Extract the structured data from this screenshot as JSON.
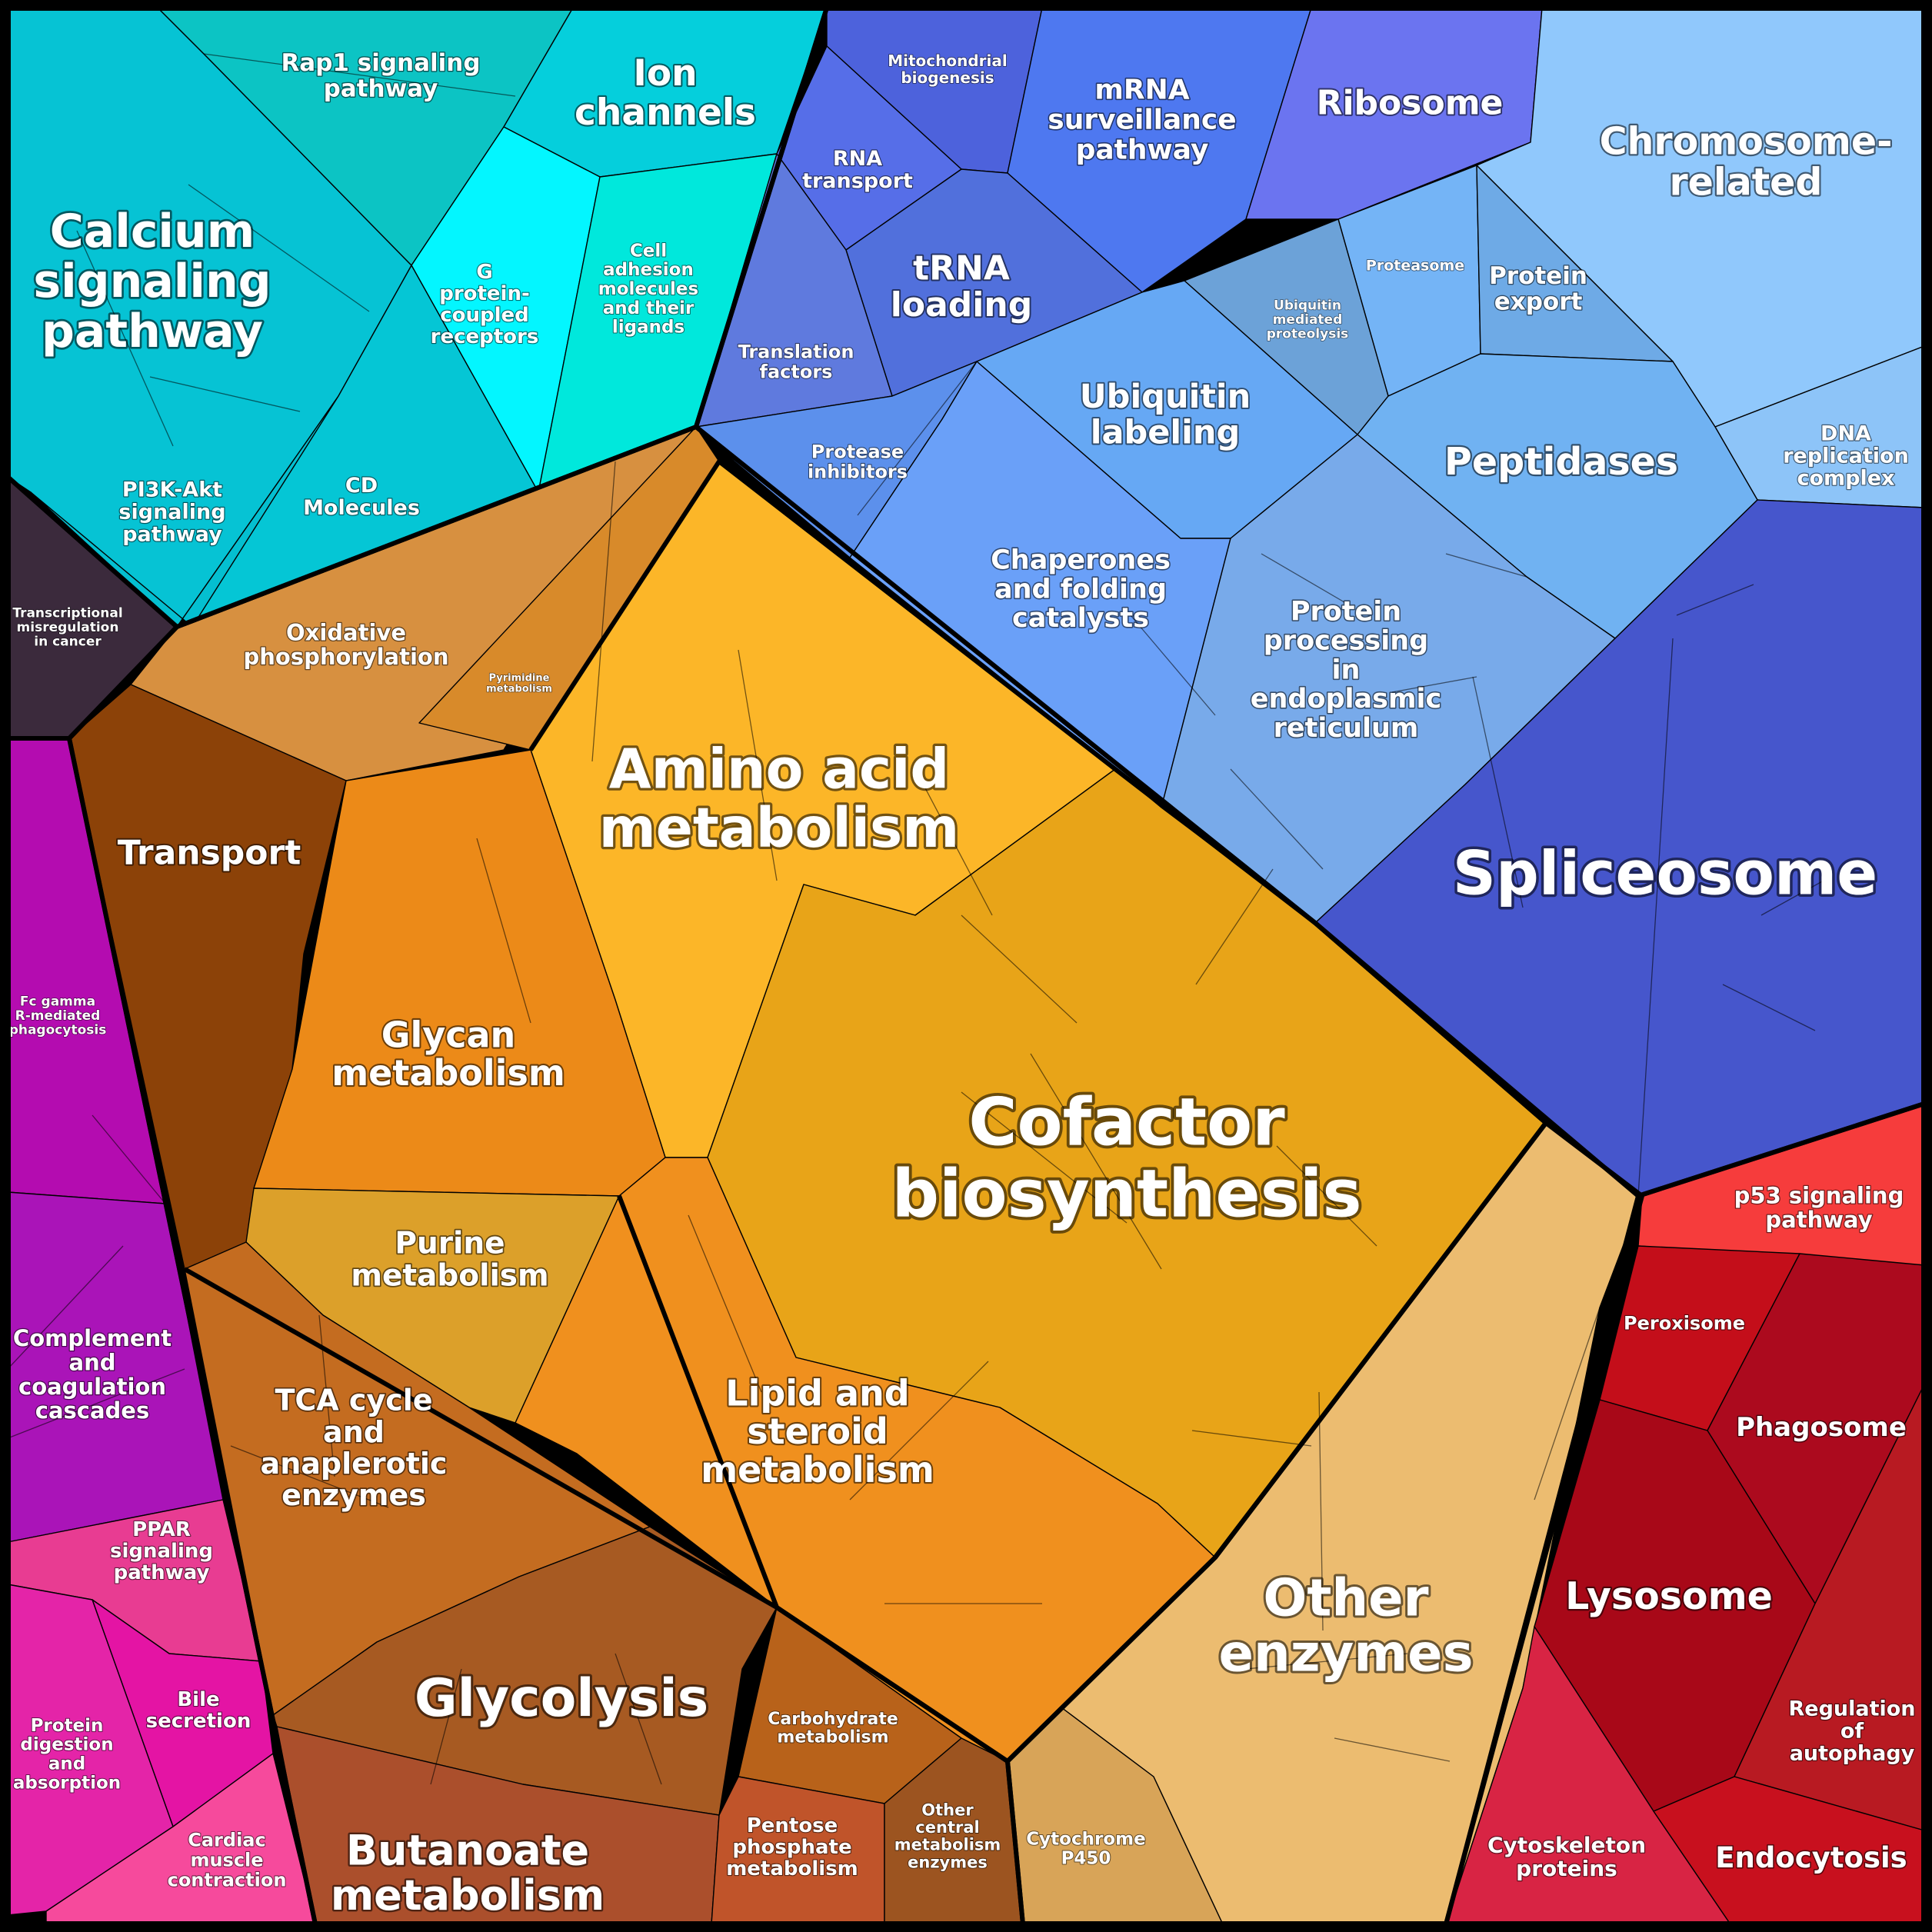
{
  "diagram": {
    "type": "voronoi-treemap",
    "groups": [
      {
        "id": "calcium-signaling-pathway",
        "label": "Calcium signaling pathway",
        "color": "#06c3d4"
      },
      {
        "id": "rap1-signaling-pathway",
        "label": "Rap1 signaling pathway",
        "color": "#0cc4c4"
      },
      {
        "id": "ion-channels",
        "label": "Ion channels",
        "color": "#05cfdc"
      },
      {
        "id": "g-protein-coupled-receptors",
        "label": "G protein-coupled receptors",
        "color": "#03f6ff"
      },
      {
        "id": "cell-adhesion-molecules",
        "label": "Cell adhesion molecules and their ligands",
        "color": "#00e8dc"
      },
      {
        "id": "pi3k-akt-signaling-pathway",
        "label": "PI3K-Akt signaling pathway",
        "color": "#04bfd0"
      },
      {
        "id": "cd-molecules",
        "label": "CD Molecules",
        "color": "#05c6d5"
      },
      {
        "id": "transcriptional-misregulation",
        "label": "Transcriptional misregulation in cancer",
        "color": "#3b2a3c"
      },
      {
        "id": "mitochondrial-biogenesis",
        "label": "Mitochondrial biogenesis",
        "color": "#4d62dc"
      },
      {
        "id": "rna-transport",
        "label": "RNA transport",
        "color": "#566ee8"
      },
      {
        "id": "mrna-surveillance-pathway",
        "label": "mRNA surveillance pathway",
        "color": "#4e78f0"
      },
      {
        "id": "ribosome",
        "label": "Ribosome",
        "color": "#6b74f0"
      },
      {
        "id": "trna-loading",
        "label": "tRNA loading",
        "color": "#5170dc"
      },
      {
        "id": "translation-factors",
        "label": "Translation factors",
        "color": "#5f7ade"
      },
      {
        "id": "chromosome-related",
        "label": "Chromosome-related",
        "color": "#90c8fc"
      },
      {
        "id": "dna-replication-complex",
        "label": "DNA replication complex",
        "color": "#8dc4f8"
      },
      {
        "id": "proteasome",
        "label": "Proteasome",
        "color": "#74b4f6"
      },
      {
        "id": "protein-export",
        "label": "Protein export",
        "color": "#6eaae6"
      },
      {
        "id": "ubiquitin-mediated-proteolysis",
        "label": "Ubiquitin mediated proteolysis",
        "color": "#6ca2d8"
      },
      {
        "id": "ubiquitin-labeling",
        "label": "Ubiquitin labeling",
        "color": "#66a8f4"
      },
      {
        "id": "peptidases",
        "label": "Peptidases",
        "color": "#70b2f2"
      },
      {
        "id": "protease-inhibitors",
        "label": "Protease inhibitors",
        "color": "#5c90ec"
      },
      {
        "id": "chaperones-and-folding-catalysts",
        "label": "Chaperones and folding catalysts",
        "color": "#6aa0f8"
      },
      {
        "id": "protein-processing-er",
        "label": "Protein processing in endoplasmic reticulum",
        "color": "#78aaea"
      },
      {
        "id": "spliceosome",
        "label": "Spliceosome",
        "color": "#4656cc"
      },
      {
        "id": "oxidative-phosphorylation",
        "label": "Oxidative phosphorylation",
        "color": "#d79040"
      },
      {
        "id": "pyrimidine-metabolism",
        "label": "Pyrimidine metabolism",
        "color": "#d88a2a"
      },
      {
        "id": "transport",
        "label": "Transport",
        "color": "#8c4208"
      },
      {
        "id": "amino-acid-metabolism",
        "label": "Amino acid metabolism",
        "color": "#fcb628"
      },
      {
        "id": "glycan-metabolism",
        "label": "Glycan metabolism",
        "color": "#ec8a18"
      },
      {
        "id": "cofactor-biosynthesis",
        "label": "Cofactor biosynthesis",
        "color": "#e8a418"
      },
      {
        "id": "purine-metabolism",
        "label": "Purine metabolism",
        "color": "#dca02a"
      },
      {
        "id": "lipid-and-steroid-metabolism",
        "label": "Lipid and steroid metabolism",
        "color": "#f0901e"
      },
      {
        "id": "tca-cycle",
        "label": "TCA cycle and anaplerotic enzymes",
        "color": "#c46c20"
      },
      {
        "id": "glycolysis",
        "label": "Glycolysis",
        "color": "#a75a22"
      },
      {
        "id": "butanoate-metabolism",
        "label": "Butanoate metabolism",
        "color": "#ab4f2c"
      },
      {
        "id": "carbohydrate-metabolism",
        "label": "Carbohydrate metabolism",
        "color": "#b8621a"
      },
      {
        "id": "pentose-phosphate-metabolism",
        "label": "Pentose phosphate metabolism",
        "color": "#c0542a"
      },
      {
        "id": "other-central-metabolism-enzymes",
        "label": "Other central metabolism enzymes",
        "color": "#9c5420"
      },
      {
        "id": "cytochrome-p450",
        "label": "Cytochrome P450",
        "color": "#d8a458"
      },
      {
        "id": "other-enzymes",
        "label": "Other enzymes",
        "color": "#ecbc70"
      },
      {
        "id": "fc-gamma-phagocytosis",
        "label": "Fc gamma R-mediated phagocytosis",
        "color": "#b40cb0"
      },
      {
        "id": "complement-and-coagulation",
        "label": "Complement and coagulation cascades",
        "color": "#aa14b8"
      },
      {
        "id": "ppar-signaling-pathway",
        "label": "PPAR signaling pathway",
        "color": "#e83c92"
      },
      {
        "id": "bile-secretion",
        "label": "Bile secretion",
        "color": "#e414a4"
      },
      {
        "id": "protein-digestion-and-absorption",
        "label": "Protein digestion and absorption",
        "color": "#e424a8"
      },
      {
        "id": "cardiac-muscle-contraction",
        "label": "Cardiac muscle contraction",
        "color": "#f64a9c"
      },
      {
        "id": "p53-signaling-pathway",
        "label": "p53 signaling pathway",
        "color": "#f63c3c"
      },
      {
        "id": "peroxisome",
        "label": "Peroxisome",
        "color": "#c40e1a"
      },
      {
        "id": "phagosome",
        "label": "Phagosome",
        "color": "#ac0a1e"
      },
      {
        "id": "lysosome",
        "label": "Lysosome",
        "color": "#a80818"
      },
      {
        "id": "regulation-of-autophagy",
        "label": "Regulation of autophagy",
        "color": "#b81a22"
      },
      {
        "id": "cytoskeleton-proteins",
        "label": "Cytoskeleton proteins",
        "color": "#d82444"
      },
      {
        "id": "endocytosis",
        "label": "Endocytosis",
        "color": "#c8101e"
      }
    ],
    "labels": [
      {
        "group": "calcium-signaling-pathway",
        "lines": [
          "Calcium",
          "signaling",
          "pathway"
        ]
      },
      {
        "group": "rap1-signaling-pathway",
        "lines": [
          "Rap1 signaling",
          "pathway"
        ]
      },
      {
        "group": "ion-channels",
        "lines": [
          "Ion",
          "channels"
        ]
      },
      {
        "group": "g-protein-coupled-receptors",
        "lines": [
          "G",
          "protein-",
          "coupled",
          "receptors"
        ]
      },
      {
        "group": "cell-adhesion-molecules",
        "lines": [
          "Cell",
          "adhesion",
          "molecules",
          "and their",
          "ligands"
        ]
      },
      {
        "group": "pi3k-akt-signaling-pathway",
        "lines": [
          "PI3K-Akt",
          "signaling",
          "pathway"
        ]
      },
      {
        "group": "cd-molecules",
        "lines": [
          "CD",
          "Molecules"
        ]
      },
      {
        "group": "transcriptional-misregulation",
        "lines": [
          "Transcriptional",
          "misregulation",
          "in cancer"
        ]
      },
      {
        "group": "mitochondrial-biogenesis",
        "lines": [
          "Mitochondrial",
          "biogenesis"
        ]
      },
      {
        "group": "rna-transport",
        "lines": [
          "RNA",
          "transport"
        ]
      },
      {
        "group": "mrna-surveillance-pathway",
        "lines": [
          "mRNA",
          "surveillance",
          "pathway"
        ]
      },
      {
        "group": "ribosome",
        "lines": [
          "Ribosome"
        ]
      },
      {
        "group": "trna-loading",
        "lines": [
          "tRNA",
          "loading"
        ]
      },
      {
        "group": "translation-factors",
        "lines": [
          "Translation",
          "factors"
        ]
      },
      {
        "group": "chromosome-related",
        "lines": [
          "Chromosome-",
          "related"
        ]
      },
      {
        "group": "dna-replication-complex",
        "lines": [
          "DNA",
          "replication",
          "complex"
        ]
      },
      {
        "group": "proteasome",
        "lines": [
          "Proteasome"
        ]
      },
      {
        "group": "protein-export",
        "lines": [
          "Protein",
          "export"
        ]
      },
      {
        "group": "ubiquitin-mediated-proteolysis",
        "lines": [
          "Ubiquitin",
          "mediated",
          "proteolysis"
        ]
      },
      {
        "group": "ubiquitin-labeling",
        "lines": [
          "Ubiquitin",
          "labeling"
        ]
      },
      {
        "group": "peptidases",
        "lines": [
          "Peptidases"
        ]
      },
      {
        "group": "protease-inhibitors",
        "lines": [
          "Protease",
          "inhibitors"
        ]
      },
      {
        "group": "chaperones-and-folding-catalysts",
        "lines": [
          "Chaperones",
          "and folding",
          "catalysts"
        ]
      },
      {
        "group": "protein-processing-er",
        "lines": [
          "Protein",
          "processing",
          "in",
          "endoplasmic",
          "reticulum"
        ]
      },
      {
        "group": "spliceosome",
        "lines": [
          "Spliceosome"
        ]
      },
      {
        "group": "oxidative-phosphorylation",
        "lines": [
          "Oxidative",
          "phosphorylation"
        ]
      },
      {
        "group": "pyrimidine-metabolism",
        "lines": [
          "Pyrimidine",
          "metabolism"
        ]
      },
      {
        "group": "transport",
        "lines": [
          "Transport"
        ]
      },
      {
        "group": "amino-acid-metabolism",
        "lines": [
          "Amino acid",
          "metabolism"
        ]
      },
      {
        "group": "glycan-metabolism",
        "lines": [
          "Glycan",
          "metabolism"
        ]
      },
      {
        "group": "cofactor-biosynthesis",
        "lines": [
          "Cofactor",
          "biosynthesis"
        ]
      },
      {
        "group": "purine-metabolism",
        "lines": [
          "Purine",
          "metabolism"
        ]
      },
      {
        "group": "lipid-and-steroid-metabolism",
        "lines": [
          "Lipid and",
          "steroid",
          "metabolism"
        ]
      },
      {
        "group": "tca-cycle",
        "lines": [
          "TCA cycle",
          "and",
          "anaplerotic",
          "enzymes"
        ]
      },
      {
        "group": "glycolysis",
        "lines": [
          "Glycolysis"
        ]
      },
      {
        "group": "butanoate-metabolism",
        "lines": [
          "Butanoate",
          "metabolism"
        ]
      },
      {
        "group": "carbohydrate-metabolism",
        "lines": [
          "Carbohydrate",
          "metabolism"
        ]
      },
      {
        "group": "pentose-phosphate-metabolism",
        "lines": [
          "Pentose",
          "phosphate",
          "metabolism"
        ]
      },
      {
        "group": "other-central-metabolism-enzymes",
        "lines": [
          "Other",
          "central",
          "metabolism",
          "enzymes"
        ]
      },
      {
        "group": "cytochrome-p450",
        "lines": [
          "Cytochrome",
          "P450"
        ]
      },
      {
        "group": "other-enzymes",
        "lines": [
          "Other",
          "enzymes"
        ]
      },
      {
        "group": "fc-gamma-phagocytosis",
        "lines": [
          "Fc gamma",
          "R-mediated",
          "phagocytosis"
        ]
      },
      {
        "group": "complement-and-coagulation",
        "lines": [
          "Complement",
          "and",
          "coagulation",
          "cascades"
        ]
      },
      {
        "group": "ppar-signaling-pathway",
        "lines": [
          "PPAR",
          "signaling",
          "pathway"
        ]
      },
      {
        "group": "bile-secretion",
        "lines": [
          "Bile",
          "secretion"
        ]
      },
      {
        "group": "protein-digestion-and-absorption",
        "lines": [
          "Protein",
          "digestion",
          "and",
          "absorption"
        ]
      },
      {
        "group": "cardiac-muscle-contraction",
        "lines": [
          "Cardiac",
          "muscle",
          "contraction"
        ]
      },
      {
        "group": "p53-signaling-pathway",
        "lines": [
          "p53 signaling",
          "pathway"
        ]
      },
      {
        "group": "peroxisome",
        "lines": [
          "Peroxisome"
        ]
      },
      {
        "group": "phagosome",
        "lines": [
          "Phagosome"
        ]
      },
      {
        "group": "lysosome",
        "lines": [
          "Lysosome"
        ]
      },
      {
        "group": "regulation-of-autophagy",
        "lines": [
          "Regulation",
          "of",
          "autophagy"
        ]
      },
      {
        "group": "cytoskeleton-proteins",
        "lines": [
          "Cytoskeleton",
          "proteins"
        ]
      },
      {
        "group": "endocytosis",
        "lines": [
          "Endocytosis"
        ]
      }
    ]
  }
}
